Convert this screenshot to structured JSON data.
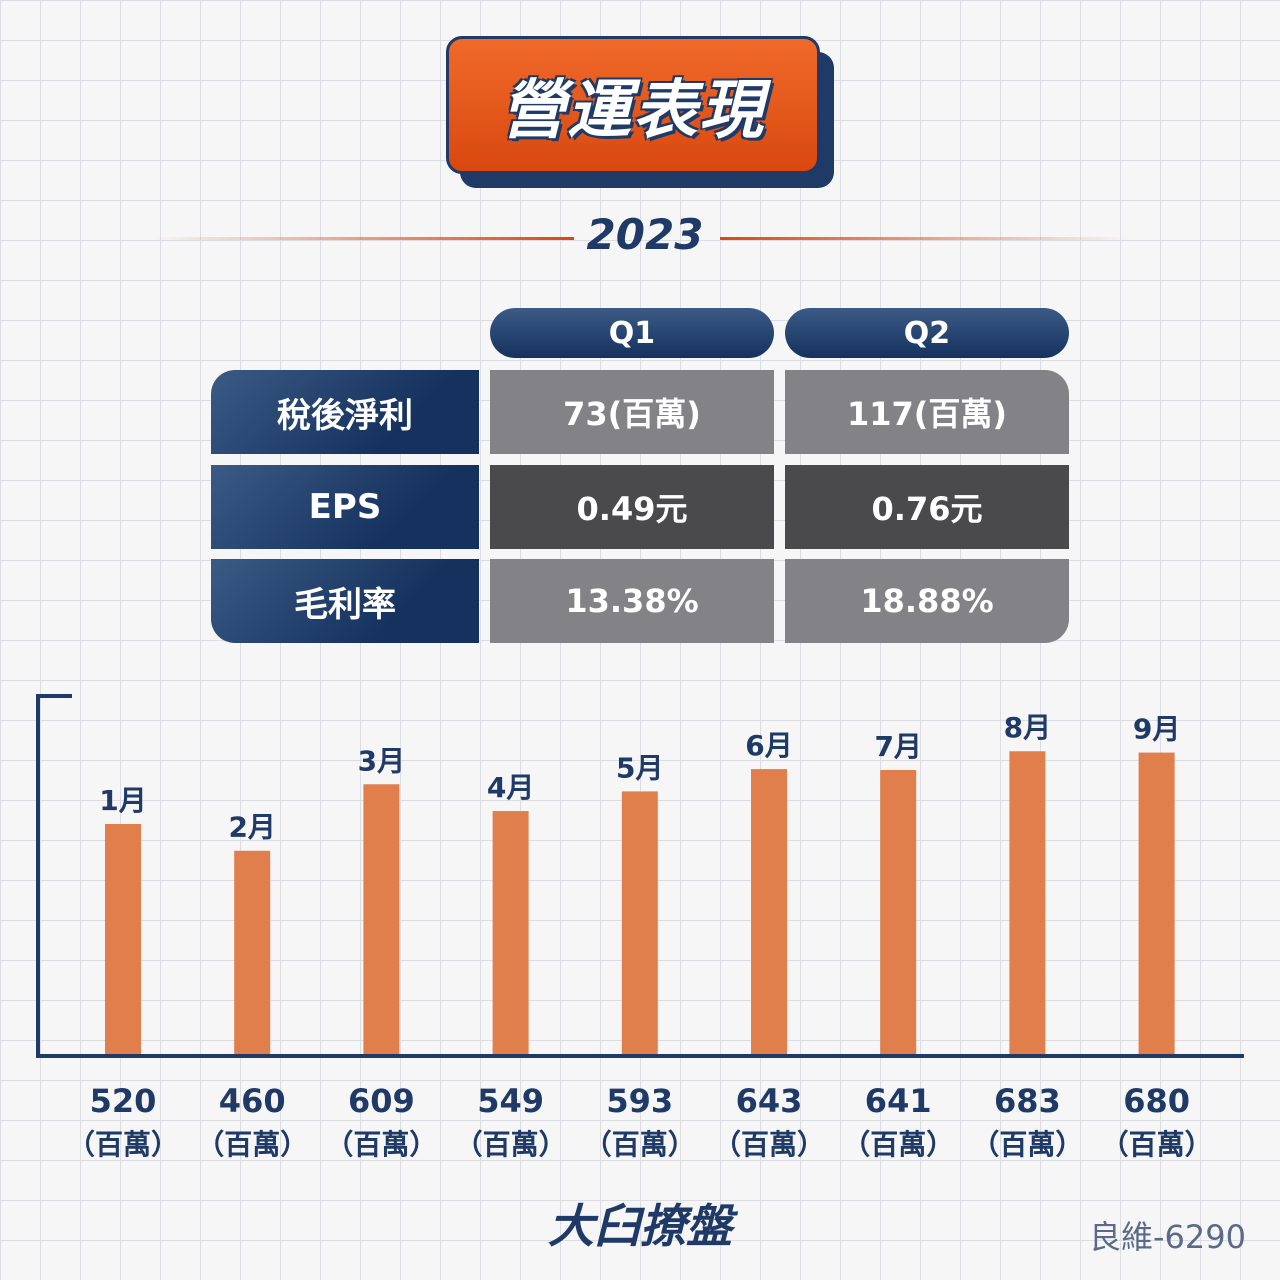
{
  "title": "營運表現",
  "year": "2023",
  "table": {
    "quarters": [
      "Q1",
      "Q2"
    ],
    "rows": [
      {
        "label": "稅後淨利",
        "values": [
          "73(百萬)",
          "117(百萬)"
        ],
        "style": "light"
      },
      {
        "label": "EPS",
        "values": [
          "0.49元",
          "0.76元"
        ],
        "style": "dark"
      },
      {
        "label": "毛利率",
        "values": [
          "13.38%",
          "18.88%"
        ],
        "style": "light"
      }
    ]
  },
  "chart_data": {
    "type": "bar",
    "categories": [
      "1月",
      "2月",
      "3月",
      "4月",
      "5月",
      "6月",
      "7月",
      "8月",
      "9月"
    ],
    "values": [
      520,
      460,
      609,
      549,
      593,
      643,
      641,
      683,
      680
    ],
    "unit_label": "（百萬）",
    "bar_color": "#e07f4c",
    "axis_color": "#1f3a66"
  },
  "footer": {
    "logo": "大臼撩盤",
    "stock": "良維-6290"
  }
}
